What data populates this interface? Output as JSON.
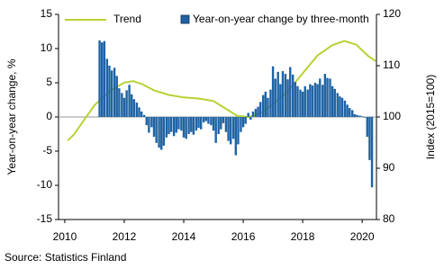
{
  "chart_data": {
    "type": "bar",
    "source": "Source: Statistics Finland",
    "y_label": "Year-on-year change, %",
    "y2_label": "Index (2015=100)",
    "xlim": [
      2009.79,
      2020.48
    ],
    "xticks": [
      2010,
      2012,
      2014,
      2016,
      2018,
      2020
    ],
    "ylim": [
      -15,
      15
    ],
    "yticks": [
      -15,
      -10,
      -5,
      0,
      5,
      10,
      15
    ],
    "y2lim": [
      80,
      120
    ],
    "y2ticks": [
      80,
      90,
      100,
      110,
      120
    ],
    "legend": "top",
    "series": [
      {
        "name": "Trend",
        "type": "line",
        "axis": "y2",
        "color": "#b5d334",
        "x": [
          2010.1,
          2010.3,
          2010.6,
          2011.0,
          2011.5,
          2012.0,
          2012.3,
          2012.6,
          2013.0,
          2013.5,
          2014.0,
          2014.5,
          2015.0,
          2015.5,
          2015.8,
          2016.2,
          2016.6,
          2017.0,
          2017.5,
          2018.0,
          2018.5,
          2019.0,
          2019.4,
          2019.8,
          2020.2,
          2020.45
        ],
        "values": [
          95.4,
          96.5,
          99,
          102.3,
          105,
          106.7,
          107.0,
          106.4,
          105.2,
          104.3,
          103.8,
          103.6,
          103.1,
          101.3,
          100.2,
          100.0,
          100.8,
          102.5,
          105,
          108.5,
          112,
          114,
          114.8,
          114.1,
          111.9,
          110.9
        ]
      },
      {
        "name": "Year-on-year change by three-month",
        "type": "bar",
        "color": "#1f63a3",
        "x": [
          2011.17,
          2011.25,
          2011.33,
          2011.42,
          2011.5,
          2011.58,
          2011.67,
          2011.75,
          2011.83,
          2011.92,
          2012.0,
          2012.08,
          2012.17,
          2012.25,
          2012.33,
          2012.42,
          2012.5,
          2012.58,
          2012.67,
          2012.75,
          2012.83,
          2012.92,
          2013.0,
          2013.08,
          2013.17,
          2013.25,
          2013.33,
          2013.42,
          2013.5,
          2013.58,
          2013.67,
          2013.75,
          2013.83,
          2013.92,
          2014.0,
          2014.08,
          2014.17,
          2014.25,
          2014.33,
          2014.42,
          2014.5,
          2014.58,
          2014.67,
          2014.75,
          2014.83,
          2014.92,
          2015.0,
          2015.08,
          2015.17,
          2015.25,
          2015.33,
          2015.42,
          2015.5,
          2015.58,
          2015.67,
          2015.75,
          2015.83,
          2015.92,
          2016.0,
          2016.08,
          2016.17,
          2016.25,
          2016.33,
          2016.42,
          2016.5,
          2016.58,
          2016.67,
          2016.75,
          2016.83,
          2016.92,
          2017.0,
          2017.08,
          2017.17,
          2017.25,
          2017.33,
          2017.42,
          2017.5,
          2017.58,
          2017.67,
          2017.75,
          2017.83,
          2017.92,
          2018.0,
          2018.08,
          2018.17,
          2018.25,
          2018.33,
          2018.42,
          2018.5,
          2018.58,
          2018.67,
          2018.75,
          2018.83,
          2018.92,
          2019.0,
          2019.08,
          2019.17,
          2019.25,
          2019.33,
          2019.42,
          2019.5,
          2019.58,
          2019.67,
          2019.75,
          2019.83,
          2019.92,
          2020.0,
          2020.08,
          2020.17,
          2020.25,
          2020.33
        ],
        "values": [
          11.2,
          10.9,
          11.1,
          8.5,
          7.5,
          6.8,
          7.2,
          6.0,
          4.2,
          3.5,
          2.8,
          3.9,
          4.7,
          3.3,
          2.6,
          2.1,
          1.4,
          0.8,
          0.3,
          -1.2,
          -2.3,
          -1.5,
          -2.9,
          -3.8,
          -4.5,
          -4.8,
          -4.2,
          -3.0,
          -2.5,
          -2.2,
          -2.8,
          -2.3,
          -1.8,
          -2.0,
          -3.0,
          -3.2,
          -2.5,
          -2.2,
          -2.6,
          -2.0,
          -1.6,
          -1.8,
          -0.8,
          -0.6,
          -1.0,
          -1.2,
          -2.0,
          -3.8,
          -2.5,
          -1.8,
          -0.9,
          -2.2,
          -3.5,
          -4.0,
          -3.2,
          -5.6,
          -4.0,
          -2.2,
          -1.5,
          -1.0,
          0.6,
          -0.4,
          0.8,
          1.2,
          1.5,
          2.2,
          3.2,
          3.7,
          2.8,
          4.0,
          7.4,
          5.6,
          6.6,
          4.8,
          6.7,
          6.3,
          5.5,
          7.3,
          6.2,
          5.1,
          4.5,
          4.0,
          3.7,
          4.5,
          4.0,
          4.8,
          4.6,
          5.0,
          4.8,
          5.6,
          4.7,
          6.3,
          5.7,
          5.6,
          4.5,
          4.1,
          3.5,
          3.0,
          2.8,
          2.4,
          1.8,
          1.3,
          1.0,
          0.4,
          0.3,
          0.2,
          0.1,
          -0.1,
          -2.9,
          -6.3,
          -10.3
        ]
      }
    ]
  }
}
